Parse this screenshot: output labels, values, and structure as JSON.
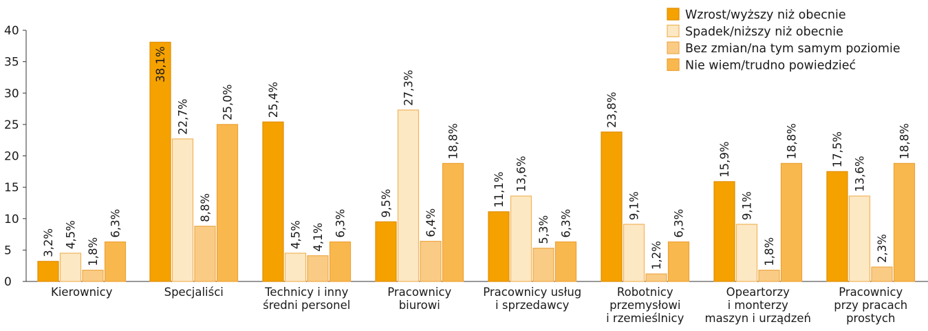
{
  "chart_data": {
    "type": "bar",
    "ylim": [
      0,
      40
    ],
    "yticks": [
      "0",
      "5",
      "10",
      "15",
      "20",
      "25",
      "30",
      "35",
      "40"
    ],
    "categories": [
      [
        "Kierownicy"
      ],
      [
        "Specjaliści"
      ],
      [
        "Technicy i inny",
        "średni personel"
      ],
      [
        "Pracownicy",
        "biurowi"
      ],
      [
        "Pracownicy usług",
        "i sprzedawcy"
      ],
      [
        "Robotnicy",
        "przemysłowi",
        "i rzemieślnicy"
      ],
      [
        "Opeartorzy",
        "i monterzy",
        "maszyn i urządzeń"
      ],
      [
        "Pracownicy",
        "przy pracach",
        "prostych"
      ]
    ],
    "series": [
      {
        "name": "Wzrost/wyższy niż obecnie",
        "color": "#F5A100",
        "stroke": "#E08E00",
        "values": [
          3.2,
          38.1,
          25.4,
          9.5,
          11.1,
          23.8,
          15.9,
          17.5
        ],
        "labels": [
          "3,2%",
          "38,1%",
          "25,4%",
          "9,5%",
          "11,1%",
          "23,8%",
          "15,9%",
          "17,5%"
        ]
      },
      {
        "name": "Spadek/niższy niż obecnie",
        "color": "#FDE8C4",
        "stroke": "#F0B45A",
        "values": [
          4.5,
          22.7,
          4.5,
          27.3,
          13.6,
          9.1,
          9.1,
          13.6
        ],
        "labels": [
          "4,5%",
          "22,7%",
          "4,5%",
          "27,3%",
          "13,6%",
          "9,1%",
          "9,1%",
          "13,6%"
        ]
      },
      {
        "name": "Bez zmian/na tym samym poziomie",
        "color": "#FACB84",
        "stroke": "#EDA94A",
        "values": [
          1.8,
          8.8,
          4.1,
          6.4,
          5.3,
          1.2,
          1.8,
          2.3
        ],
        "labels": [
          "1,8%",
          "8,8%",
          "4,1%",
          "6,4%",
          "5,3%",
          "1,2%",
          "1,8%",
          "2,3%"
        ]
      },
      {
        "name": "Nie wiem/trudno powiedzieć",
        "color": "#F9B84E",
        "stroke": "#EDA034",
        "values": [
          6.3,
          25.0,
          6.3,
          18.8,
          6.3,
          6.3,
          18.8,
          18.8
        ],
        "labels": [
          "6,3%",
          "25,0%",
          "6,3%",
          "18,8%",
          "6,3%",
          "6,3%",
          "18,8%",
          "18,8%"
        ]
      }
    ],
    "legend_position": "top-right",
    "grid": false
  }
}
